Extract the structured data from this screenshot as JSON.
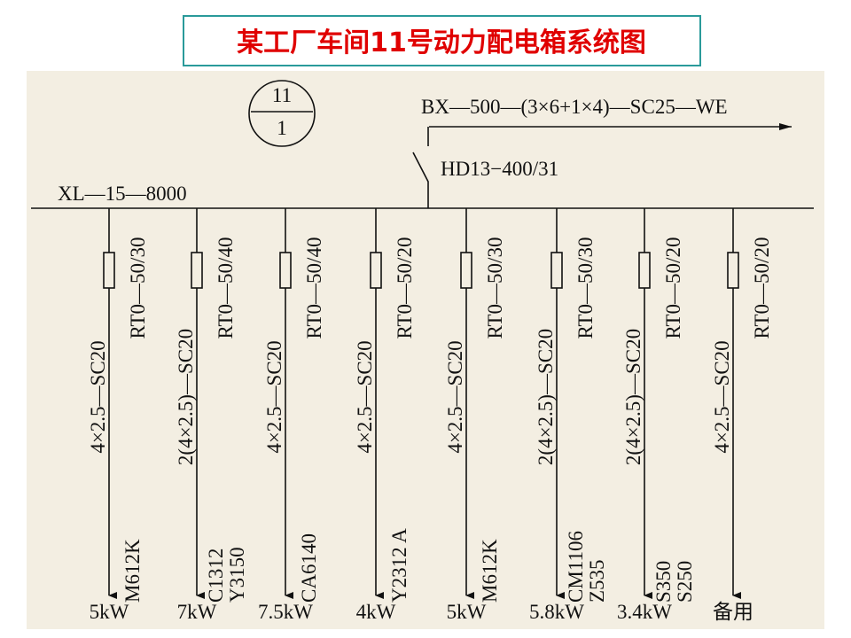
{
  "title": "某工厂车间11号动力配电箱系统图",
  "circle": {
    "top": "11",
    "bottom": "1"
  },
  "incoming": {
    "cable": "BX—500—(3×6+1×4)—SC25—WE",
    "switch": "HD13−400/31"
  },
  "bus": {
    "label": "XL—15—8000"
  },
  "feeders": [
    {
      "fuse": "RT0—50/30",
      "cable": "4×2.5—SC20",
      "equipment": [
        "M612K"
      ],
      "power": "5kW"
    },
    {
      "fuse": "RT0—50/40",
      "cable": "2(4×2.5)—SC20",
      "equipment": [
        "C1312",
        "Y3150"
      ],
      "power": "7kW"
    },
    {
      "fuse": "RT0—50/40",
      "cable": "4×2.5—SC20",
      "equipment": [
        "CA6140"
      ],
      "power": "7.5kW"
    },
    {
      "fuse": "RT0—50/20",
      "cable": "4×2.5—SC20",
      "equipment": [
        "Y2312 A"
      ],
      "power": "4kW"
    },
    {
      "fuse": "RT0—50/30",
      "cable": "4×2.5—SC20",
      "equipment": [
        "M612K"
      ],
      "power": "5kW"
    },
    {
      "fuse": "RT0—50/30",
      "cable": "2(4×2.5)—SC20",
      "equipment": [
        "CM1106",
        "Z535"
      ],
      "power": "5.8kW"
    },
    {
      "fuse": "RT0—50/20",
      "cable": "2(4×2.5)—SC20",
      "equipment": [
        "S350",
        "S250"
      ],
      "power": "3.4kW"
    },
    {
      "fuse": "RT0—50/20",
      "cable": "4×2.5—SC20",
      "equipment": [],
      "power": "备用"
    }
  ]
}
